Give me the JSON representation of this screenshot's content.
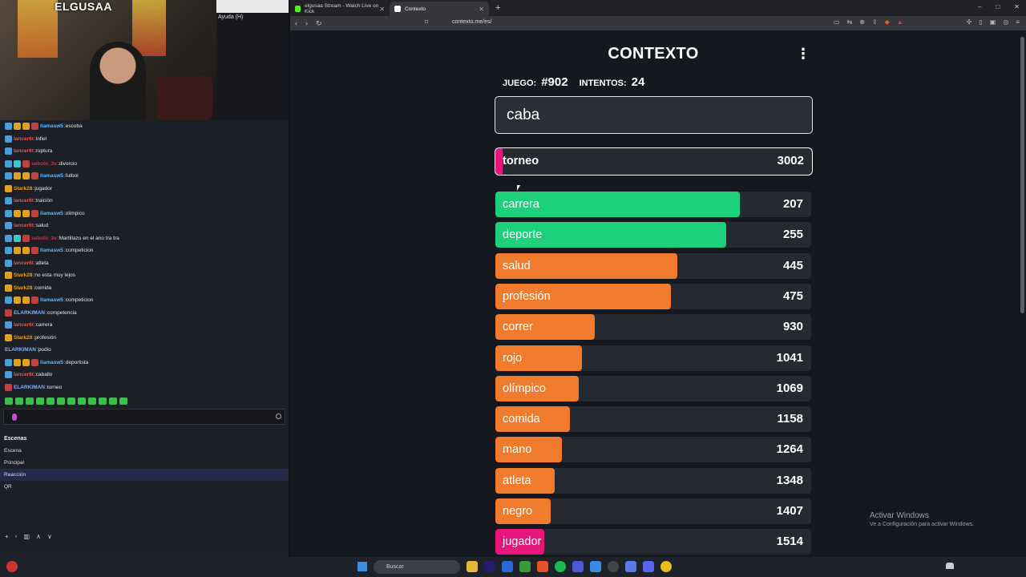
{
  "stream": {
    "channel_logo": "ELGUSAA",
    "help_menu": "Ayuda (H)"
  },
  "chat": [
    {
      "user": "llamasw5",
      "msg": "escoba",
      "color": "#5bb7ff",
      "badges": [
        "#4a9fd8",
        "#e0a020",
        "#e0a020",
        "#c04040"
      ]
    },
    {
      "user": "lancer6t",
      "msg": "infiel",
      "color": "#e0554a",
      "badges": [
        "#4a9fd8"
      ]
    },
    {
      "user": "lancer6t",
      "msg": "ruptura",
      "color": "#e0554a",
      "badges": [
        "#4a9fd8"
      ]
    },
    {
      "user": "sebolo_3v",
      "msg": "divorcio",
      "color": "#d82d48",
      "badges": [
        "#4a9fd8",
        "#3cc8c8",
        "#c04040"
      ]
    },
    {
      "user": "llamasw5",
      "msg": "futbol",
      "color": "#5bb7ff",
      "badges": [
        "#4a9fd8",
        "#e0a020",
        "#e0a020",
        "#c04040"
      ]
    },
    {
      "user": "Stark28",
      "msg": "jugador",
      "color": "#e0a020",
      "badges": [
        "#e0a020"
      ]
    },
    {
      "user": "lancer6t",
      "msg": "traición",
      "color": "#e0554a",
      "badges": [
        "#4a9fd8"
      ]
    },
    {
      "user": "llamasw5",
      "msg": "olimpico",
      "color": "#5bb7ff",
      "badges": [
        "#4a9fd8",
        "#e0a020",
        "#e0a020",
        "#c04040"
      ]
    },
    {
      "user": "lancer6t",
      "msg": "salud",
      "color": "#e0554a",
      "badges": [
        "#4a9fd8"
      ]
    },
    {
      "user": "sebolo_3v",
      "msg": "Martillazo en el ano tra tra",
      "color": "#d82d48",
      "badges": [
        "#4a9fd8",
        "#3cc8c8",
        "#c04040"
      ]
    },
    {
      "user": "llamasw5",
      "msg": "competicion",
      "color": "#5bb7ff",
      "badges": [
        "#4a9fd8",
        "#e0a020",
        "#e0a020",
        "#c04040"
      ]
    },
    {
      "user": "lancer6t",
      "msg": "atleta",
      "color": "#e0554a",
      "badges": [
        "#4a9fd8"
      ]
    },
    {
      "user": "Stark28",
      "msg": "no esta muy lejos",
      "color": "#e0a020",
      "badges": [
        "#e0a020"
      ]
    },
    {
      "user": "Stark28",
      "msg": "comida",
      "color": "#e0a020",
      "badges": [
        "#e0a020"
      ]
    },
    {
      "user": "llamasw5",
      "msg": "competicion",
      "color": "#5bb7ff",
      "badges": [
        "#4a9fd8",
        "#e0a020",
        "#e0a020",
        "#c04040"
      ]
    },
    {
      "user": "ELARKIMAN",
      "msg": "competencia",
      "color": "#7ab0ff",
      "badges": [
        "#c04040"
      ]
    },
    {
      "user": "lancer6t",
      "msg": "carrera",
      "color": "#e0554a",
      "badges": [
        "#4a9fd8"
      ]
    },
    {
      "user": "Stark28",
      "msg": "profesión",
      "color": "#e0a020",
      "badges": [
        "#e0a020"
      ]
    },
    {
      "user": "ELARKIMAN",
      "msg": "podio",
      "color": "#7ab0ff",
      "badges": []
    },
    {
      "user": "llamasw5",
      "msg": "deportista",
      "color": "#5bb7ff",
      "badges": [
        "#4a9fd8",
        "#e0a020",
        "#e0a020",
        "#c04040"
      ]
    },
    {
      "user": "lancer6t",
      "msg": "caballo",
      "color": "#e0554a",
      "badges": [
        "#4a9fd8"
      ]
    },
    {
      "user": "ELARKIMAN",
      "msg": "torneo",
      "color": "#7ab0ff",
      "badges": [
        "#c04040"
      ]
    }
  ],
  "scenes": {
    "title": "Escenas",
    "items": [
      {
        "label": "Escena",
        "active": false
      },
      {
        "label": "Principal",
        "active": false
      },
      {
        "label": "Reacción",
        "active": true
      },
      {
        "label": "QR",
        "active": false
      }
    ]
  },
  "browser": {
    "tabs": [
      {
        "label": "elgusaa Stream - Watch Live on Kick",
        "favicon_color": "#53fc18",
        "active": false
      },
      {
        "label": "Contexto",
        "favicon_color": "#ffffff",
        "active": true
      }
    ],
    "url": "contexto.me/es/"
  },
  "game": {
    "title": "CONTEXTO",
    "game_label": "JUEGO:",
    "game_number": "#902",
    "attempts_label": "INTENTOS:",
    "attempts": "24",
    "input_value": "caba",
    "last_guess": {
      "word": "torneo",
      "distance": 3002,
      "color": "#e8157a"
    },
    "guesses": [
      {
        "word": "carrera",
        "distance": 207,
        "color": "#1dd07b",
        "fill": 0.775
      },
      {
        "word": "deporte",
        "distance": 255,
        "color": "#1dd07b",
        "fill": 0.73
      },
      {
        "word": "salud",
        "distance": 445,
        "color": "#f07b2d",
        "fill": 0.575
      },
      {
        "word": "profesión",
        "distance": 475,
        "color": "#f07b2d",
        "fill": 0.555
      },
      {
        "word": "correr",
        "distance": 930,
        "color": "#f07b2d",
        "fill": 0.315
      },
      {
        "word": "rojo",
        "distance": 1041,
        "color": "#f07b2d",
        "fill": 0.275
      },
      {
        "word": "olímpico",
        "distance": 1069,
        "color": "#f07b2d",
        "fill": 0.263
      },
      {
        "word": "comida",
        "distance": 1158,
        "color": "#f07b2d",
        "fill": 0.237
      },
      {
        "word": "mano",
        "distance": 1264,
        "color": "#f07b2d",
        "fill": 0.21
      },
      {
        "word": "atleta",
        "distance": 1348,
        "color": "#f07b2d",
        "fill": 0.187
      },
      {
        "word": "negro",
        "distance": 1407,
        "color": "#f07b2d",
        "fill": 0.175
      },
      {
        "word": "jugador",
        "distance": 1514,
        "color": "#e8157a",
        "fill": 0.155
      }
    ]
  },
  "watermark": {
    "line1": "Activar Windows",
    "line2": "Ve a Configuración para activar Windows."
  },
  "taskbar": {
    "search_placeholder": "Buscar"
  }
}
